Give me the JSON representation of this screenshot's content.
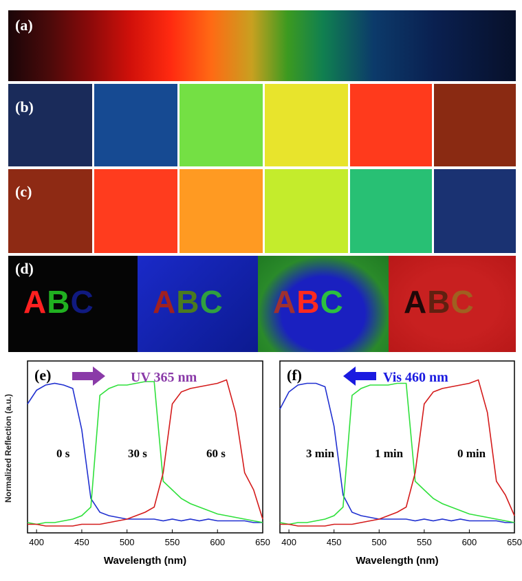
{
  "panels": {
    "a": {
      "label": "(a)"
    },
    "b": {
      "label": "(b)"
    },
    "c": {
      "label": "(c)"
    },
    "d": {
      "label": "(d)",
      "photos": [
        {
          "letters": [
            "A",
            "B",
            "C"
          ]
        },
        {
          "letters": [
            "A",
            "B",
            "C"
          ]
        },
        {
          "letters": [
            "A",
            "B",
            "C"
          ]
        },
        {
          "letters": [
            "A",
            "B",
            "C"
          ]
        }
      ]
    }
  },
  "charts": [
    {
      "type": "line",
      "label": "(e)",
      "arrow_text": "UV 365 nm",
      "annotations": [
        "0 s",
        "30 s",
        "60 s"
      ],
      "xlabel": "Wavelength (nm)",
      "ylabel": "Normalized Reflection (a.u.)",
      "xlim": [
        390,
        650
      ],
      "ylim": [
        0,
        1
      ],
      "xticks": [
        400,
        450,
        500,
        550,
        600,
        650
      ],
      "x": [
        390,
        400,
        410,
        420,
        430,
        440,
        450,
        460,
        470,
        480,
        490,
        500,
        510,
        520,
        530,
        540,
        550,
        560,
        570,
        580,
        590,
        600,
        610,
        620,
        630,
        640,
        650
      ],
      "series": [
        {
          "color": "#1f2fd0",
          "values": [
            0.75,
            0.83,
            0.86,
            0.87,
            0.86,
            0.84,
            0.6,
            0.2,
            0.12,
            0.1,
            0.09,
            0.08,
            0.08,
            0.08,
            0.08,
            0.07,
            0.08,
            0.07,
            0.08,
            0.07,
            0.08,
            0.07,
            0.07,
            0.07,
            0.07,
            0.06,
            0.06
          ]
        },
        {
          "color": "#2ee03a",
          "values": [
            0.06,
            0.05,
            0.06,
            0.06,
            0.07,
            0.08,
            0.1,
            0.15,
            0.8,
            0.84,
            0.86,
            0.86,
            0.87,
            0.88,
            0.88,
            0.3,
            0.25,
            0.2,
            0.17,
            0.15,
            0.13,
            0.11,
            0.1,
            0.09,
            0.08,
            0.07,
            0.06
          ]
        },
        {
          "color": "#d41a1a",
          "values": [
            0.05,
            0.05,
            0.04,
            0.04,
            0.04,
            0.04,
            0.05,
            0.05,
            0.05,
            0.06,
            0.07,
            0.08,
            0.1,
            0.12,
            0.15,
            0.35,
            0.75,
            0.82,
            0.84,
            0.85,
            0.86,
            0.87,
            0.89,
            0.7,
            0.35,
            0.25,
            0.08
          ]
        }
      ]
    },
    {
      "type": "line",
      "label": "(f)",
      "arrow_text": "Vis 460 nm",
      "annotations": [
        "3 min",
        "1 min",
        "0 min"
      ],
      "xlabel": "Wavelength (nm)",
      "xlim": [
        390,
        650
      ],
      "ylim": [
        0,
        1
      ],
      "xticks": [
        400,
        450,
        500,
        550,
        600,
        650
      ],
      "x": [
        390,
        400,
        410,
        420,
        430,
        440,
        450,
        460,
        470,
        480,
        490,
        500,
        510,
        520,
        530,
        540,
        550,
        560,
        570,
        580,
        590,
        600,
        610,
        620,
        630,
        640,
        650
      ],
      "series": [
        {
          "color": "#1f2fd0",
          "values": [
            0.72,
            0.82,
            0.86,
            0.87,
            0.87,
            0.85,
            0.62,
            0.22,
            0.12,
            0.1,
            0.09,
            0.08,
            0.08,
            0.08,
            0.08,
            0.07,
            0.08,
            0.07,
            0.08,
            0.07,
            0.08,
            0.07,
            0.07,
            0.07,
            0.07,
            0.06,
            0.06
          ]
        },
        {
          "color": "#2ee03a",
          "values": [
            0.06,
            0.05,
            0.06,
            0.06,
            0.07,
            0.08,
            0.1,
            0.15,
            0.8,
            0.84,
            0.86,
            0.86,
            0.86,
            0.87,
            0.87,
            0.3,
            0.25,
            0.2,
            0.17,
            0.15,
            0.13,
            0.11,
            0.1,
            0.09,
            0.08,
            0.07,
            0.06
          ]
        },
        {
          "color": "#d41a1a",
          "values": [
            0.05,
            0.05,
            0.04,
            0.04,
            0.04,
            0.04,
            0.05,
            0.05,
            0.05,
            0.06,
            0.07,
            0.08,
            0.1,
            0.12,
            0.15,
            0.35,
            0.75,
            0.82,
            0.84,
            0.85,
            0.86,
            0.87,
            0.89,
            0.7,
            0.3,
            0.22,
            0.1
          ]
        }
      ]
    }
  ]
}
